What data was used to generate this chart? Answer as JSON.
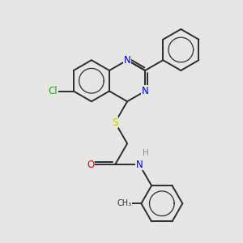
{
  "bg_color": "#e6e6e6",
  "bond_color": "#2d2d2d",
  "atom_colors": {
    "N": "#0000ff",
    "O": "#ff0000",
    "S": "#cccc00",
    "Cl": "#00bb00",
    "H": "#888888",
    "C": "#2d2d2d"
  },
  "font_size": 8.5,
  "line_width": 1.4
}
